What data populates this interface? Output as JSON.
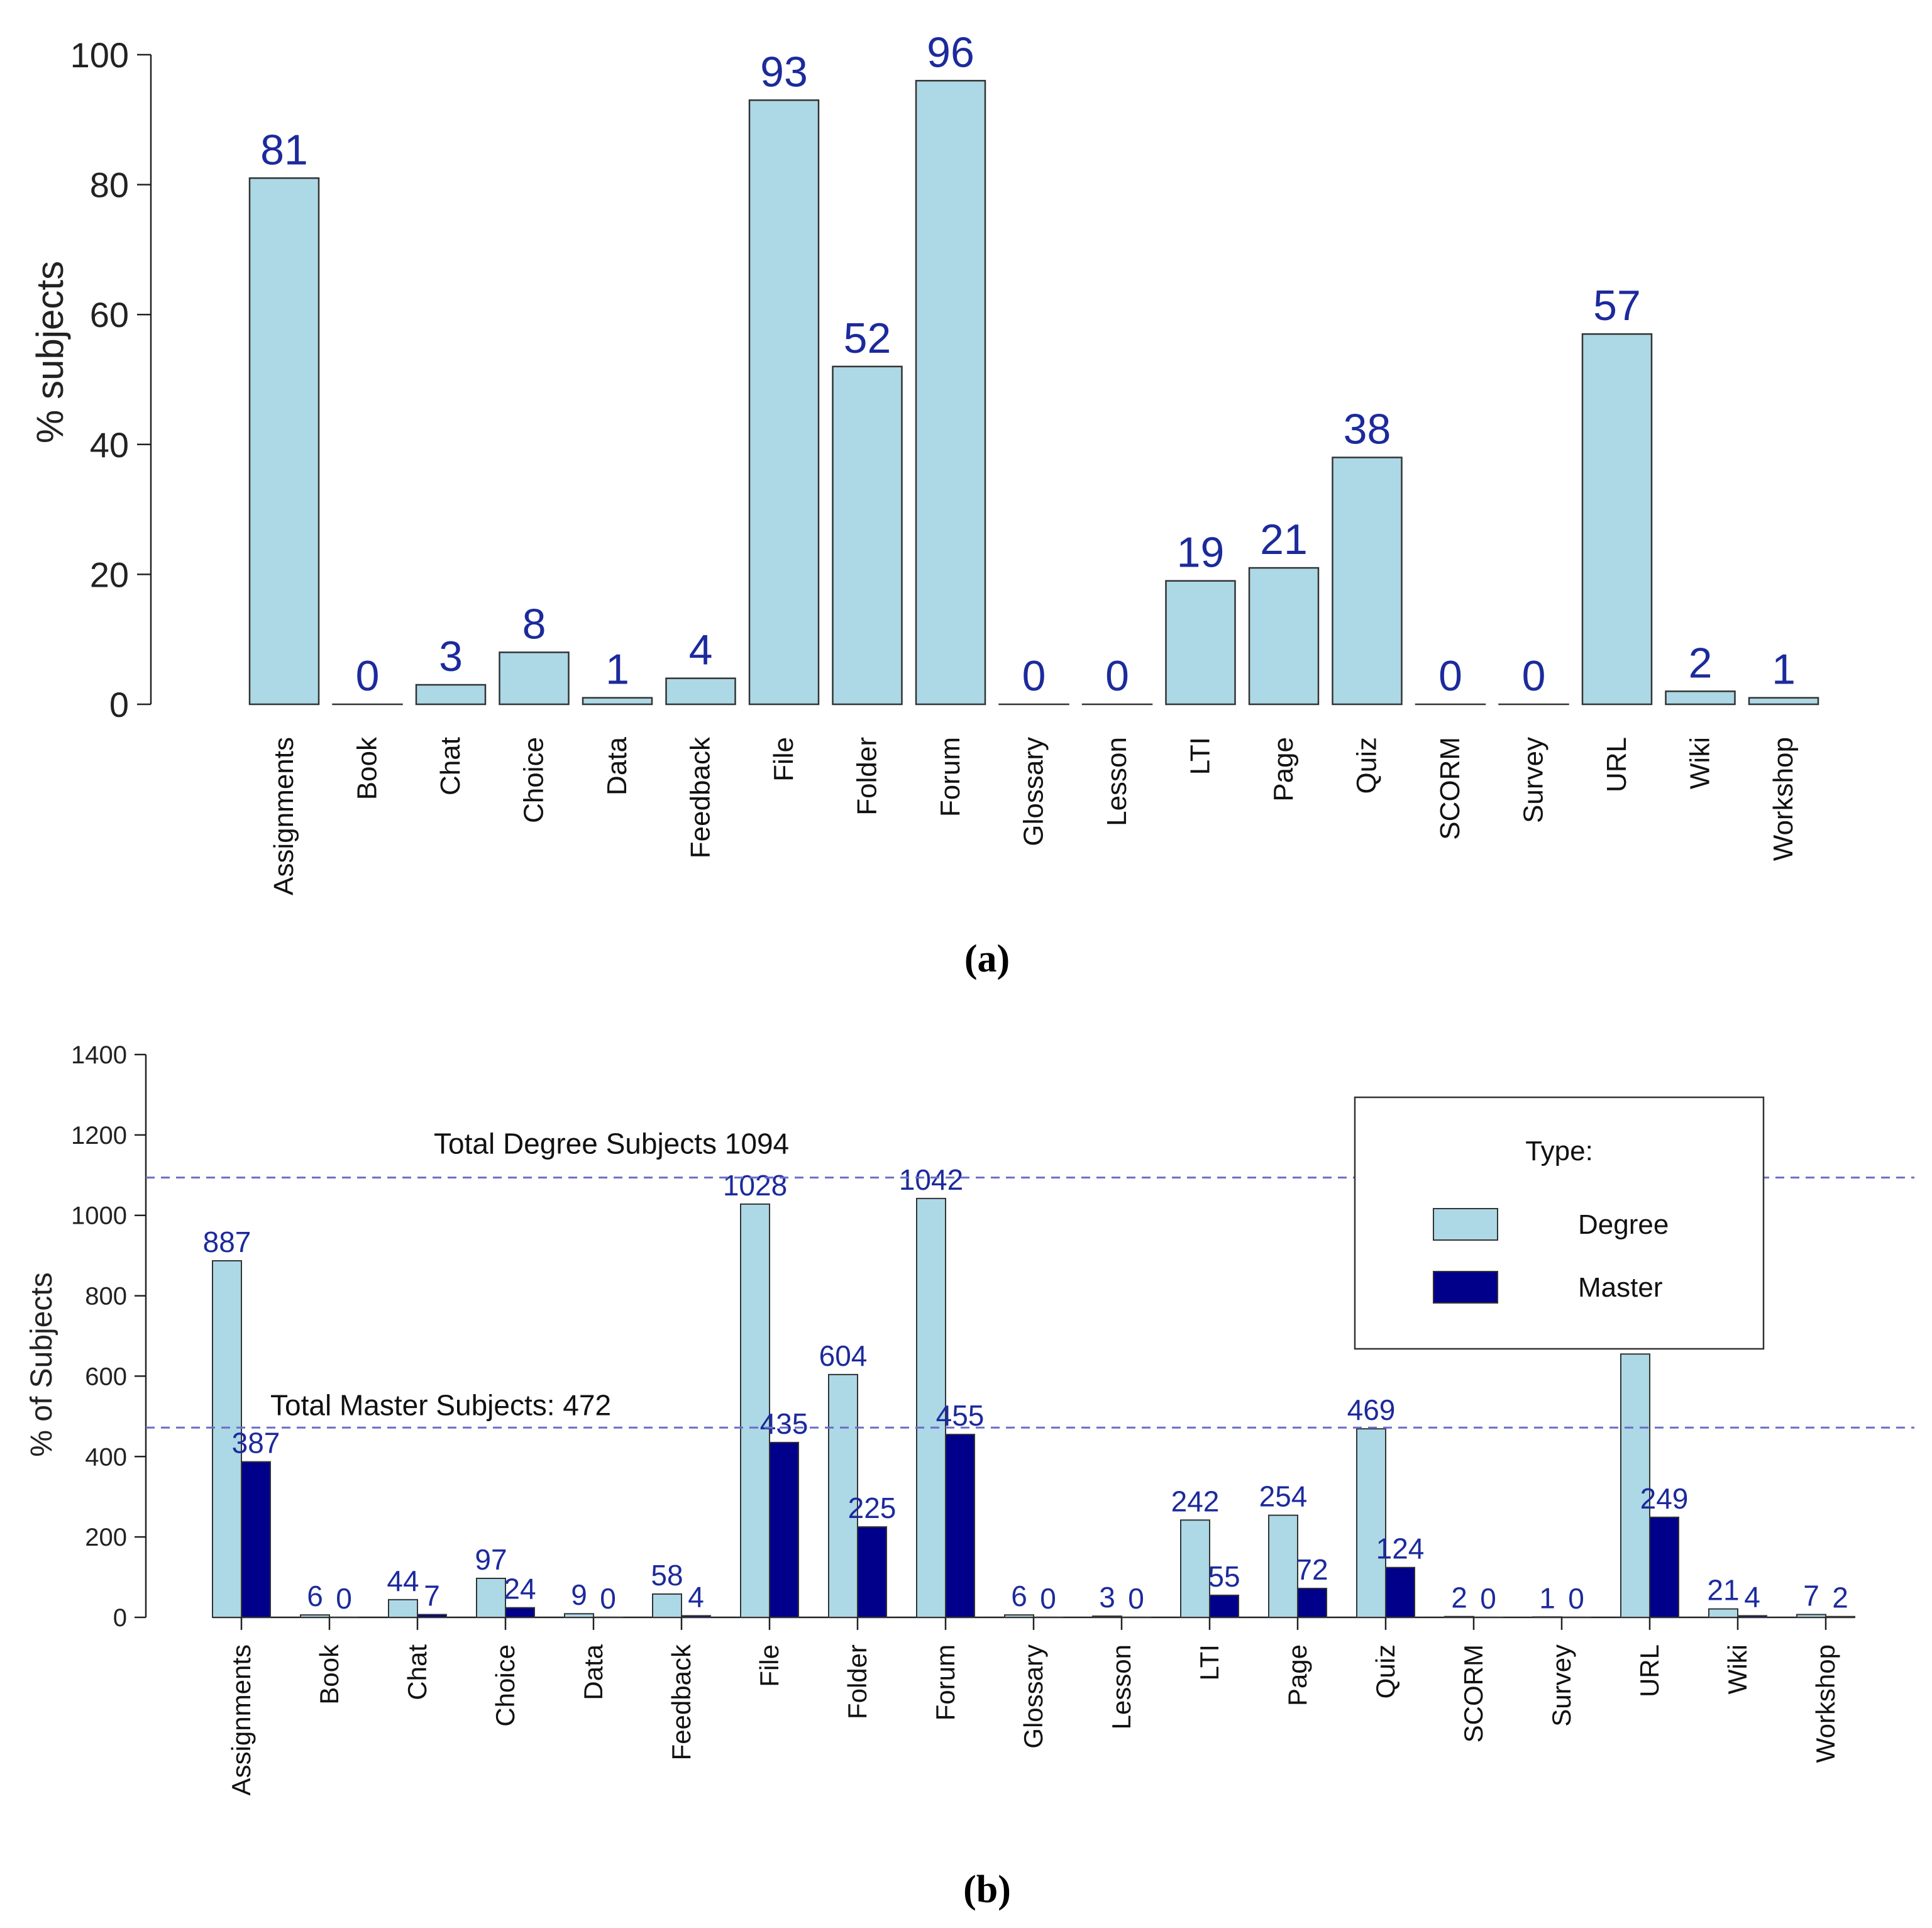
{
  "colors": {
    "degree": "#ADD8E6",
    "master": "#00008B",
    "label": "#1C2A9C",
    "reference_line": "#6A6FC8",
    "bar_stroke": "#333333"
  },
  "chart_data": [
    {
      "type": "bar",
      "caption": "(a)",
      "ylabel": "% subjects",
      "ylim": [
        0,
        100
      ],
      "yticks": [
        0,
        20,
        40,
        60,
        80,
        100
      ],
      "categories": [
        "Assignments",
        "Book",
        "Chat",
        "Choice",
        "Data",
        "Feedback",
        "File",
        "Folder",
        "Forum",
        "Glossary",
        "Lesson",
        "LTI",
        "Page",
        "Quiz",
        "SCORM",
        "Survey",
        "URL",
        "Wiki",
        "Workshop"
      ],
      "values": [
        81,
        0,
        3,
        8,
        1,
        4,
        93,
        52,
        96,
        0,
        0,
        19,
        21,
        38,
        0,
        0,
        57,
        2,
        1
      ],
      "data_labels": true,
      "grid": false
    },
    {
      "type": "bar",
      "caption": "(b)",
      "ylabel": "% of Subjects",
      "ylim": [
        0,
        1400
      ],
      "yticks": [
        0,
        200,
        400,
        600,
        800,
        1000,
        1200,
        1400
      ],
      "categories": [
        "Assignments",
        "Book",
        "Chat",
        "Choice",
        "Data",
        "Feedback",
        "File",
        "Folder",
        "Forum",
        "Glossary",
        "Lesson",
        "LTI",
        "Page",
        "Quiz",
        "SCORM",
        "Survey",
        "URL",
        "Wiki",
        "Workshop"
      ],
      "series": [
        {
          "name": "Degree",
          "values": [
            887,
            6,
            44,
            97,
            9,
            58,
            1028,
            604,
            1042,
            6,
            3,
            242,
            254,
            469,
            2,
            1,
            655,
            21,
            7
          ]
        },
        {
          "name": "Master",
          "values": [
            387,
            0,
            7,
            24,
            0,
            4,
            435,
            225,
            455,
            0,
            0,
            55,
            72,
            124,
            0,
            0,
            249,
            4,
            2
          ]
        }
      ],
      "label_visible": [
        [
          true,
          true,
          true,
          true,
          true,
          true,
          true,
          true,
          true,
          true,
          true,
          true,
          true,
          true,
          true,
          true,
          false,
          true,
          true
        ],
        [
          true,
          true,
          true,
          true,
          true,
          true,
          true,
          true,
          true,
          true,
          true,
          true,
          true,
          true,
          true,
          true,
          true,
          true,
          true
        ]
      ],
      "reference_lines": [
        {
          "value": 1094,
          "label": "Total Degree Subjects 1094"
        },
        {
          "value": 472,
          "label": "Total Master Subjects: 472"
        }
      ],
      "legend": {
        "title": "Type:",
        "position": "top-right",
        "entries": [
          "Degree",
          "Master"
        ]
      },
      "grid": false
    }
  ]
}
